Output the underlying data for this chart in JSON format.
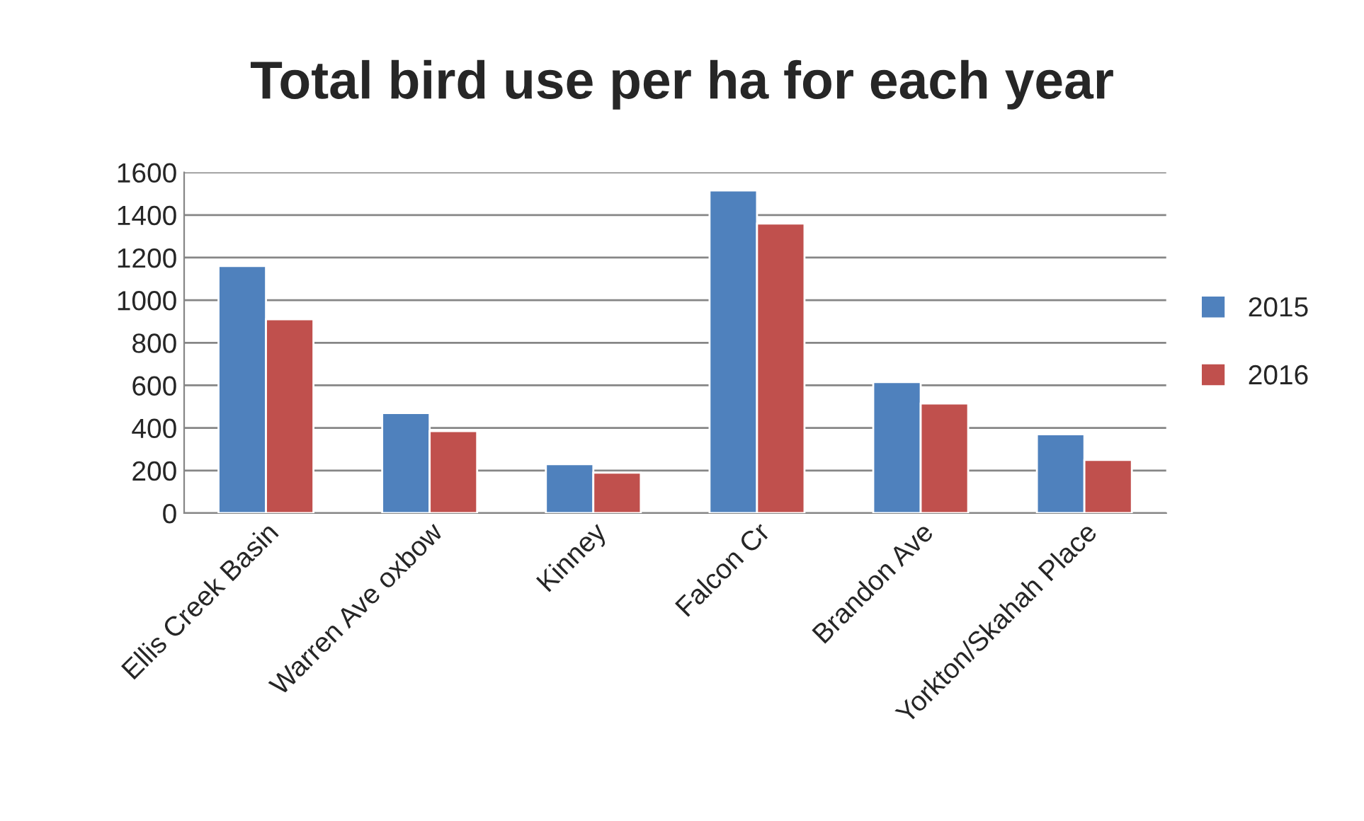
{
  "chart_data": {
    "type": "bar",
    "title": "Total bird use per ha for each year",
    "categories": [
      "Ellis Creek Basin",
      "Warren Ave oxbow",
      "Kinney",
      "Falcon Cr",
      "Brandon Ave",
      "Yorkton/Skahah Place"
    ],
    "series": [
      {
        "name": "2015",
        "color": "#4f81bd",
        "values": [
          1160,
          470,
          230,
          1515,
          615,
          370
        ]
      },
      {
        "name": "2016",
        "color": "#c0504d",
        "values": [
          910,
          385,
          190,
          1360,
          515,
          250
        ]
      }
    ],
    "ylim": [
      0,
      1600
    ],
    "yticks": [
      0,
      200,
      400,
      600,
      800,
      1000,
      1200,
      1400,
      1600
    ],
    "grid": "y",
    "legend": "right"
  }
}
